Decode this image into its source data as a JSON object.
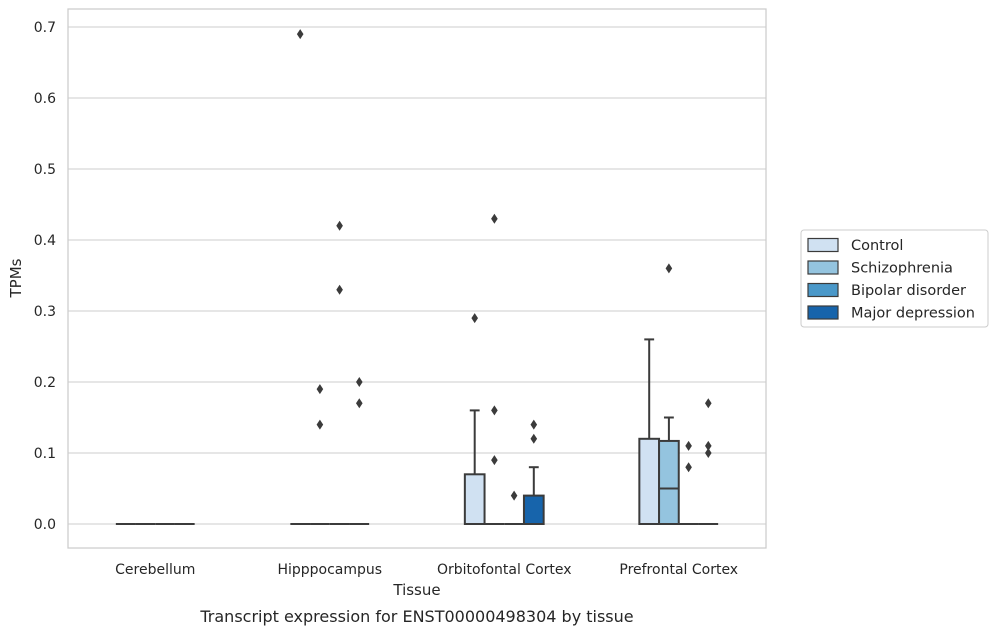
{
  "caption": "Transcript expression for ENST00000498304 by tissue",
  "chart_data": {
    "type": "box",
    "xlabel": "Tissue",
    "ylabel": "TPMs",
    "ylim": [
      -0.034,
      0.726
    ],
    "yticks": [
      0.0,
      0.1,
      0.2,
      0.3,
      0.4,
      0.5,
      0.6,
      0.7
    ],
    "ytick_labels": [
      "0.0",
      "0.1",
      "0.2",
      "0.3",
      "0.4",
      "0.5",
      "0.6",
      "0.7"
    ],
    "grid": "horizontal",
    "legend_position": "right",
    "categories": [
      "Cerebellum",
      "Hipppocampus",
      "Orbitofontal Cortex",
      "Prefrontal Cortex"
    ],
    "series": [
      {
        "name": "Control",
        "color": "#d0e1f2",
        "boxes": [
          {
            "q1": 0,
            "median": 0,
            "q3": 0,
            "whisker_low": 0,
            "whisker_high": 0,
            "outliers": []
          },
          {
            "q1": 0,
            "median": 0,
            "q3": 0,
            "whisker_low": 0,
            "whisker_high": 0,
            "outliers": [
              0.69
            ]
          },
          {
            "q1": 0,
            "median": 0,
            "q3": 0.07,
            "whisker_low": 0,
            "whisker_high": 0.16,
            "outliers": [
              0.29
            ]
          },
          {
            "q1": 0,
            "median": 0,
            "q3": 0.12,
            "whisker_low": 0,
            "whisker_high": 0.26,
            "outliers": []
          }
        ]
      },
      {
        "name": "Schizophrenia",
        "color": "#94c4df",
        "boxes": [
          {
            "q1": 0,
            "median": 0,
            "q3": 0,
            "whisker_low": 0,
            "whisker_high": 0,
            "outliers": []
          },
          {
            "q1": 0,
            "median": 0,
            "q3": 0,
            "whisker_low": 0,
            "whisker_high": 0,
            "outliers": [
              0.19,
              0.14
            ]
          },
          {
            "q1": 0,
            "median": 0,
            "q3": 0,
            "whisker_low": 0,
            "whisker_high": 0,
            "outliers": [
              0.43,
              0.16,
              0.09
            ]
          },
          {
            "q1": 0,
            "median": 0.05,
            "q3": 0.117,
            "whisker_low": 0,
            "whisker_high": 0.15,
            "outliers": [
              0.36
            ]
          }
        ]
      },
      {
        "name": "Bipolar disorder",
        "color": "#4a98c9",
        "boxes": [
          {
            "q1": 0,
            "median": 0,
            "q3": 0,
            "whisker_low": 0,
            "whisker_high": 0,
            "outliers": []
          },
          {
            "q1": 0,
            "median": 0,
            "q3": 0,
            "whisker_low": 0,
            "whisker_high": 0,
            "outliers": [
              0.42,
              0.33
            ]
          },
          {
            "q1": 0,
            "median": 0,
            "q3": 0,
            "whisker_low": 0,
            "whisker_high": 0,
            "outliers": [
              0.04
            ]
          },
          {
            "q1": 0,
            "median": 0,
            "q3": 0,
            "whisker_low": 0,
            "whisker_high": 0,
            "outliers": [
              0.11,
              0.08
            ]
          }
        ]
      },
      {
        "name": "Major depression",
        "color": "#1764ab",
        "boxes": [
          {
            "q1": 0,
            "median": 0,
            "q3": 0,
            "whisker_low": 0,
            "whisker_high": 0,
            "outliers": []
          },
          {
            "q1": 0,
            "median": 0,
            "q3": 0,
            "whisker_low": 0,
            "whisker_high": 0,
            "outliers": [
              0.2,
              0.17
            ]
          },
          {
            "q1": 0,
            "median": 0,
            "q3": 0.04,
            "whisker_low": 0,
            "whisker_high": 0.08,
            "outliers": [
              0.14,
              0.12
            ]
          },
          {
            "q1": 0,
            "median": 0,
            "q3": 0,
            "whisker_low": 0,
            "whisker_high": 0,
            "outliers": [
              0.17,
              0.11,
              0.1
            ]
          }
        ]
      }
    ]
  }
}
